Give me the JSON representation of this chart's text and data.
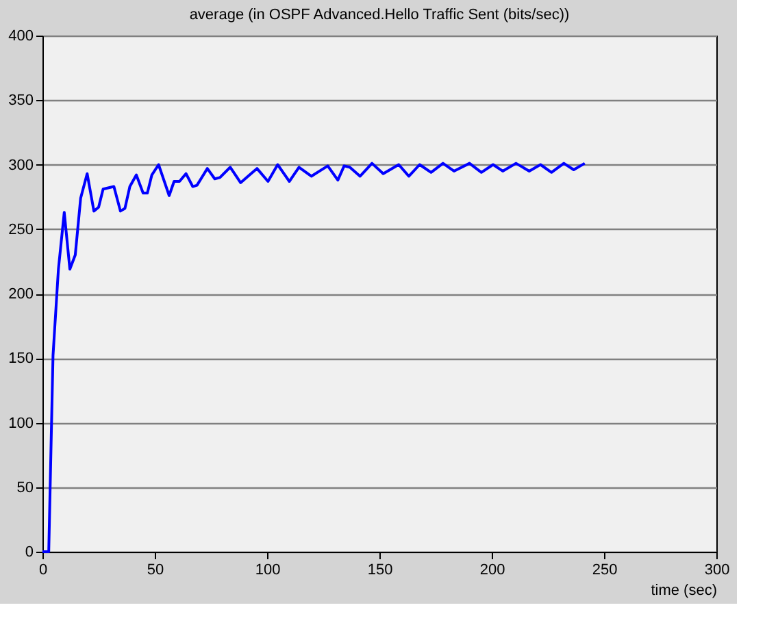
{
  "chart_data": {
    "type": "line",
    "title": "average (in OSPF Advanced.Hello Traffic Sent (bits/sec))",
    "xlabel": "time (sec)",
    "x": [
      0,
      2.8,
      4.7,
      7.1,
      9.7,
      12.2,
      14.6,
      17,
      19.9,
      22.9,
      25,
      27,
      31.8,
      34.7,
      36.7,
      38.9,
      41.8,
      44.8,
      46.7,
      48.7,
      51.7,
      56.4,
      58.6,
      61,
      63.9,
      66.9,
      68.8,
      73.4,
      76.7,
      79,
      83.6,
      88.2,
      95.5,
      100.4,
      104.7,
      109.9,
      114.2,
      119.7,
      127,
      131.5,
      134.3,
      136.8,
      141.4,
      146.7,
      151.7,
      158.6,
      163.1,
      167.9,
      173,
      178.3,
      183.2,
      190.1,
      195.4,
      200.6,
      204.9,
      210.8,
      216.7,
      221.7,
      226.6,
      232.1,
      236.5,
      241.4
    ],
    "series": [
      {
        "color": "#0000ff",
        "values": [
          0,
          0,
          152,
          219,
          263,
          219,
          230,
          274,
          293,
          264,
          267,
          281,
          283,
          264,
          266,
          283,
          292,
          278,
          278,
          292,
          300,
          276,
          287,
          287,
          293,
          283,
          284,
          297,
          289,
          290,
          298,
          286,
          297,
          287,
          300,
          287,
          298,
          291,
          299,
          288,
          299,
          298,
          291,
          301,
          293,
          300,
          291,
          300,
          294,
          301,
          295,
          301,
          294,
          300,
          295,
          301,
          295,
          300,
          294,
          301,
          296,
          301
        ]
      }
    ],
    "xlim": [
      0,
      300
    ],
    "xticks": [
      0,
      50,
      100,
      150,
      200,
      250,
      300
    ],
    "ylim": [
      0,
      400
    ],
    "yticks": [
      0,
      50,
      100,
      150,
      200,
      250,
      300,
      350,
      400
    ],
    "grid": "y",
    "marker": "none",
    "line_style": "solid"
  }
}
